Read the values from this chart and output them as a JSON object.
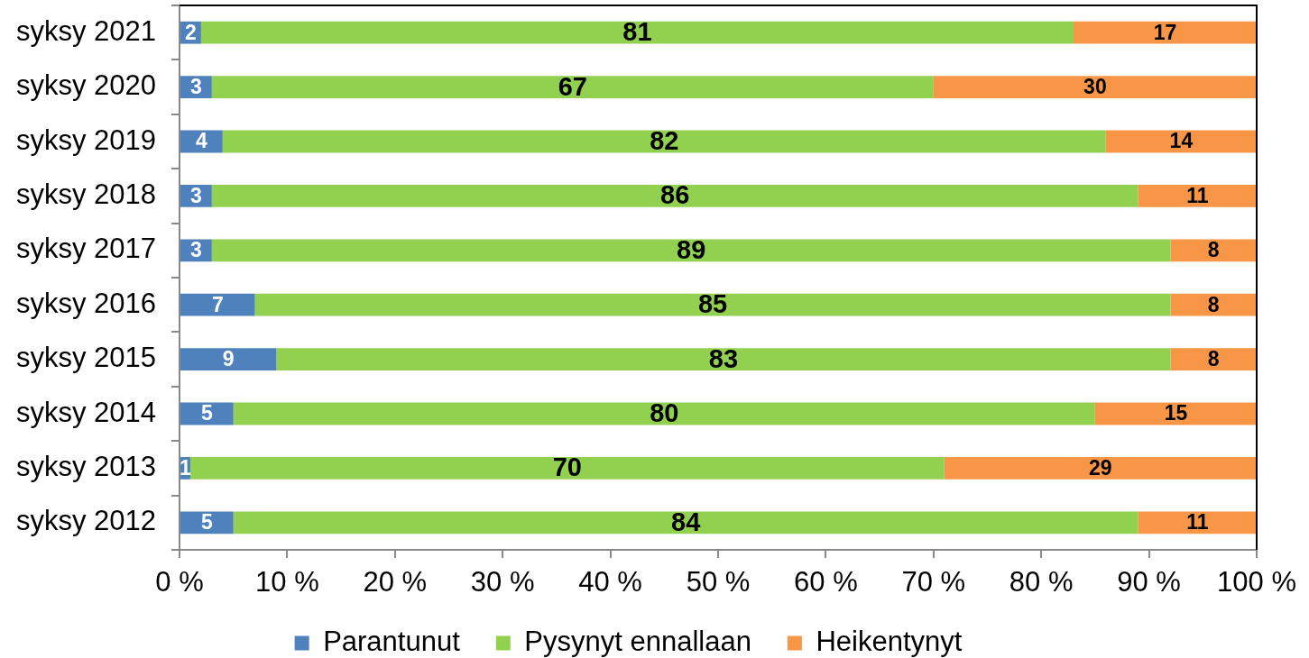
{
  "chart_data": {
    "type": "bar",
    "orientation": "horizontal",
    "stacked": true,
    "categories": [
      "syksy 2021",
      "syksy 2020",
      "syksy 2019",
      "syksy 2018",
      "syksy 2017",
      "syksy 2016",
      "syksy 2015",
      "syksy 2014",
      "syksy 2013",
      "syksy 2012"
    ],
    "series": [
      {
        "name": "Parantunut",
        "color": "#4f81bd",
        "values": [
          2,
          3,
          4,
          3,
          3,
          7,
          9,
          5,
          1,
          5
        ]
      },
      {
        "name": "Pysynyt ennallaan",
        "color": "#92d050",
        "values": [
          81,
          67,
          82,
          86,
          89,
          85,
          83,
          80,
          70,
          84
        ]
      },
      {
        "name": "Heikentynyt",
        "color": "#f79646",
        "values": [
          17,
          30,
          14,
          11,
          8,
          8,
          8,
          15,
          29,
          11
        ]
      }
    ],
    "xlim": [
      0,
      100
    ],
    "xticks": [
      {
        "value": 0,
        "label": "0 %"
      },
      {
        "value": 10,
        "label": "10 %"
      },
      {
        "value": 20,
        "label": "20 %"
      },
      {
        "value": 30,
        "label": "30 %"
      },
      {
        "value": 40,
        "label": "40 %"
      },
      {
        "value": 50,
        "label": "50 %"
      },
      {
        "value": 60,
        "label": "60 %"
      },
      {
        "value": 70,
        "label": "70 %"
      },
      {
        "value": 80,
        "label": "80 %"
      },
      {
        "value": 90,
        "label": "90 %"
      },
      {
        "value": 100,
        "label": "100 %"
      }
    ],
    "data_labels": true,
    "legend": "bottom",
    "grid": false
  }
}
